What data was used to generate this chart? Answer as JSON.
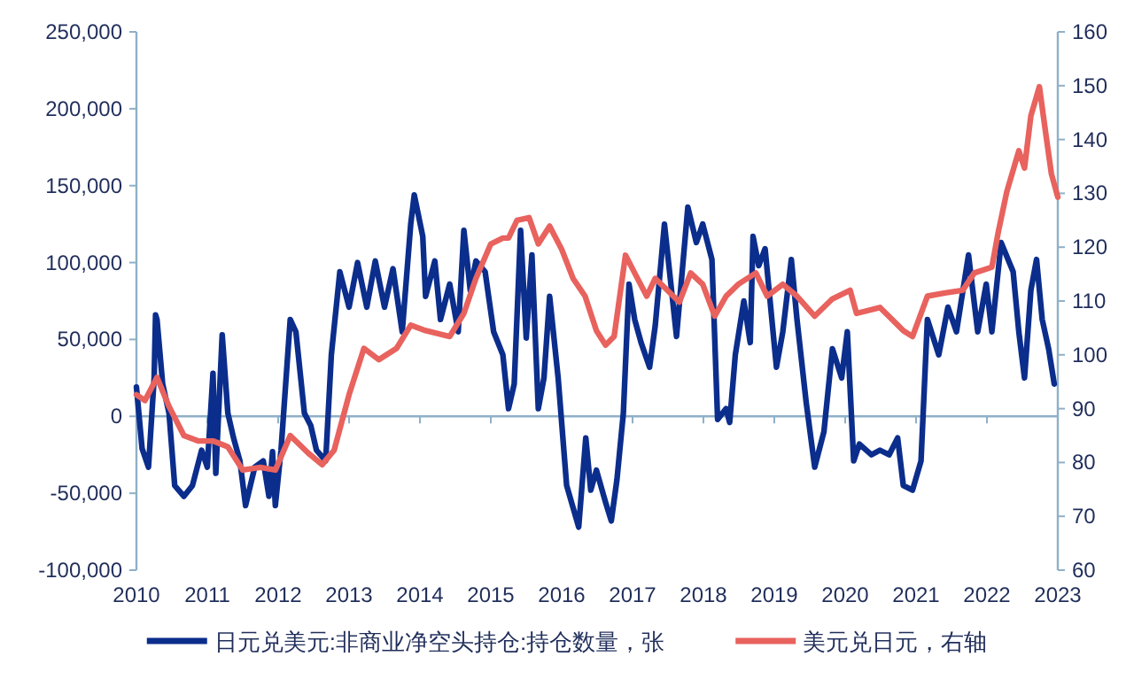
{
  "chart_data": {
    "type": "line",
    "xlim": [
      2010,
      2023
    ],
    "xticks": [
      2010,
      2011,
      2012,
      2013,
      2014,
      2015,
      2016,
      2017,
      2018,
      2019,
      2020,
      2021,
      2022,
      2023
    ],
    "ylim": [
      -100000,
      250000
    ],
    "yticks": [
      {
        "value": -100000,
        "label": "-100,000"
      },
      {
        "value": -50000,
        "label": "-50,000"
      },
      {
        "value": 0,
        "label": "0"
      },
      {
        "value": 50000,
        "label": "50,000"
      },
      {
        "value": 100000,
        "label": "100,000"
      },
      {
        "value": 150000,
        "label": "150,000"
      },
      {
        "value": 200000,
        "label": "200,000"
      },
      {
        "value": 250000,
        "label": "250,000"
      }
    ],
    "y2lim": [
      60,
      160
    ],
    "y2ticks": [
      60,
      70,
      80,
      90,
      100,
      110,
      120,
      130,
      140,
      150,
      160
    ],
    "ref_lines": [
      {
        "axis": "y",
        "value": 0,
        "color": "#8fb0c8"
      }
    ],
    "legend": "bottom",
    "grid": false,
    "marker": "none",
    "line_style": "solid",
    "series": [
      {
        "name": "日元兑美元:非商业净空头持仓:持仓数量，张",
        "color": "#0b2d8c",
        "x": [
          2010.0,
          2010.08,
          2010.17,
          2010.25,
          2010.27,
          2010.29,
          2010.37,
          2010.46,
          2010.54,
          2010.67,
          2010.79,
          2010.92,
          2011.0,
          2011.08,
          2011.12,
          2011.21,
          2011.29,
          2011.37,
          2011.46,
          2011.54,
          2011.67,
          2011.79,
          2011.87,
          2011.92,
          2011.96,
          2012.04,
          2012.17,
          2012.25,
          2012.37,
          2012.46,
          2012.54,
          2012.67,
          2012.75,
          2012.87,
          2013.0,
          2013.12,
          2013.25,
          2013.37,
          2013.5,
          2013.62,
          2013.75,
          2013.87,
          2013.92,
          2014.04,
          2014.08,
          2014.21,
          2014.29,
          2014.42,
          2014.54,
          2014.62,
          2014.71,
          2014.79,
          2014.92,
          2015.04,
          2015.17,
          2015.25,
          2015.33,
          2015.42,
          2015.5,
          2015.58,
          2015.67,
          2015.75,
          2015.83,
          2015.95,
          2016.07,
          2016.24,
          2016.34,
          2016.41,
          2016.49,
          2016.62,
          2016.7,
          2016.78,
          2016.87,
          2016.95,
          2017.03,
          2017.12,
          2017.24,
          2017.32,
          2017.45,
          2017.62,
          2017.78,
          2017.9,
          2017.99,
          2018.12,
          2018.2,
          2018.32,
          2018.37,
          2018.45,
          2018.57,
          2018.66,
          2018.7,
          2018.78,
          2018.87,
          2019.03,
          2019.12,
          2019.24,
          2019.32,
          2019.45,
          2019.57,
          2019.7,
          2019.82,
          2019.95,
          2020.03,
          2020.12,
          2020.2,
          2020.37,
          2020.49,
          2020.62,
          2020.74,
          2020.82,
          2020.95,
          2021.07,
          2021.16,
          2021.32,
          2021.45,
          2021.57,
          2021.74,
          2021.87,
          2021.99,
          2022.07,
          2022.2,
          2022.37,
          2022.45,
          2022.53,
          2022.62,
          2022.7,
          2022.78,
          2022.87,
          2022.95
        ],
        "values": [
          19000,
          -21000,
          -33000,
          25000,
          66000,
          63000,
          21000,
          2000,
          -45000,
          -52000,
          -45000,
          -22000,
          -33000,
          28000,
          -37000,
          53000,
          2000,
          -14000,
          -29000,
          -58000,
          -33000,
          -29000,
          -52000,
          -23000,
          -58000,
          -22000,
          63000,
          55000,
          2000,
          -6000,
          -22000,
          -29000,
          40000,
          94000,
          71000,
          100000,
          71000,
          101000,
          71000,
          96000,
          55000,
          125000,
          144000,
          117000,
          78000,
          101000,
          63000,
          86000,
          55000,
          121000,
          82000,
          101000,
          94000,
          55000,
          40000,
          5000,
          21000,
          121000,
          51000,
          105000,
          5000,
          25000,
          78000,
          25000,
          -45000,
          -72000,
          -14000,
          -48000,
          -35000,
          -56000,
          -68000,
          -41000,
          2000,
          86000,
          63000,
          48000,
          32000,
          59000,
          125000,
          52000,
          136000,
          113000,
          125000,
          102000,
          -2000,
          5000,
          -4000,
          40000,
          75000,
          48000,
          117000,
          98000,
          109000,
          32000,
          55000,
          102000,
          63000,
          9000,
          -33000,
          -10000,
          44000,
          25000,
          55000,
          -29000,
          -18000,
          -25000,
          -22000,
          -25000,
          -14000,
          -45000,
          -48000,
          -29000,
          63000,
          40000,
          71000,
          55000,
          105000,
          55000,
          86000,
          55000,
          113000,
          94000,
          55000,
          25000,
          82000,
          102000,
          63000,
          44000,
          21000
        ]
      },
      {
        "name": "美元兑日元，右轴",
        "color": "#e8625e",
        "axis": "y2",
        "x": [
          2010.0,
          2010.12,
          2010.29,
          2010.46,
          2010.67,
          2010.87,
          2011.08,
          2011.29,
          2011.5,
          2011.75,
          2011.96,
          2012.17,
          2012.42,
          2012.62,
          2012.79,
          2013.0,
          2013.21,
          2013.42,
          2013.67,
          2013.87,
          2014.08,
          2014.42,
          2014.62,
          2014.79,
          2015.0,
          2015.17,
          2015.25,
          2015.37,
          2015.54,
          2015.67,
          2015.83,
          2016.0,
          2016.16,
          2016.33,
          2016.49,
          2016.62,
          2016.74,
          2016.9,
          2017.03,
          2017.2,
          2017.32,
          2017.49,
          2017.66,
          2017.82,
          2017.99,
          2018.16,
          2018.32,
          2018.49,
          2018.74,
          2018.9,
          2019.12,
          2019.32,
          2019.57,
          2019.82,
          2020.07,
          2020.16,
          2020.49,
          2020.82,
          2020.95,
          2021.16,
          2021.41,
          2021.66,
          2021.82,
          2022.07,
          2022.16,
          2022.28,
          2022.45,
          2022.53,
          2022.62,
          2022.74,
          2022.83,
          2022.91,
          2023.0
        ],
        "values": [
          92.6,
          91.5,
          95.8,
          90.4,
          85.0,
          84.0,
          84.0,
          82.9,
          78.6,
          79.1,
          78.6,
          85.0,
          81.8,
          79.6,
          82.3,
          92.6,
          101.2,
          99.1,
          101.2,
          105.5,
          104.5,
          103.4,
          107.7,
          114.2,
          120.6,
          121.7,
          121.7,
          125.0,
          125.5,
          120.6,
          123.9,
          119.6,
          114.2,
          110.9,
          104.5,
          101.8,
          103.4,
          118.5,
          115.2,
          110.9,
          114.2,
          112.0,
          109.8,
          115.2,
          113.1,
          107.2,
          110.9,
          113.1,
          115.2,
          110.9,
          113.1,
          110.9,
          107.2,
          110.4,
          112.0,
          107.7,
          108.8,
          104.5,
          103.4,
          110.9,
          111.5,
          112.0,
          115.2,
          116.3,
          122.8,
          130.3,
          137.9,
          134.7,
          144.4,
          149.8,
          141.1,
          133.6,
          129.3
        ]
      }
    ]
  }
}
